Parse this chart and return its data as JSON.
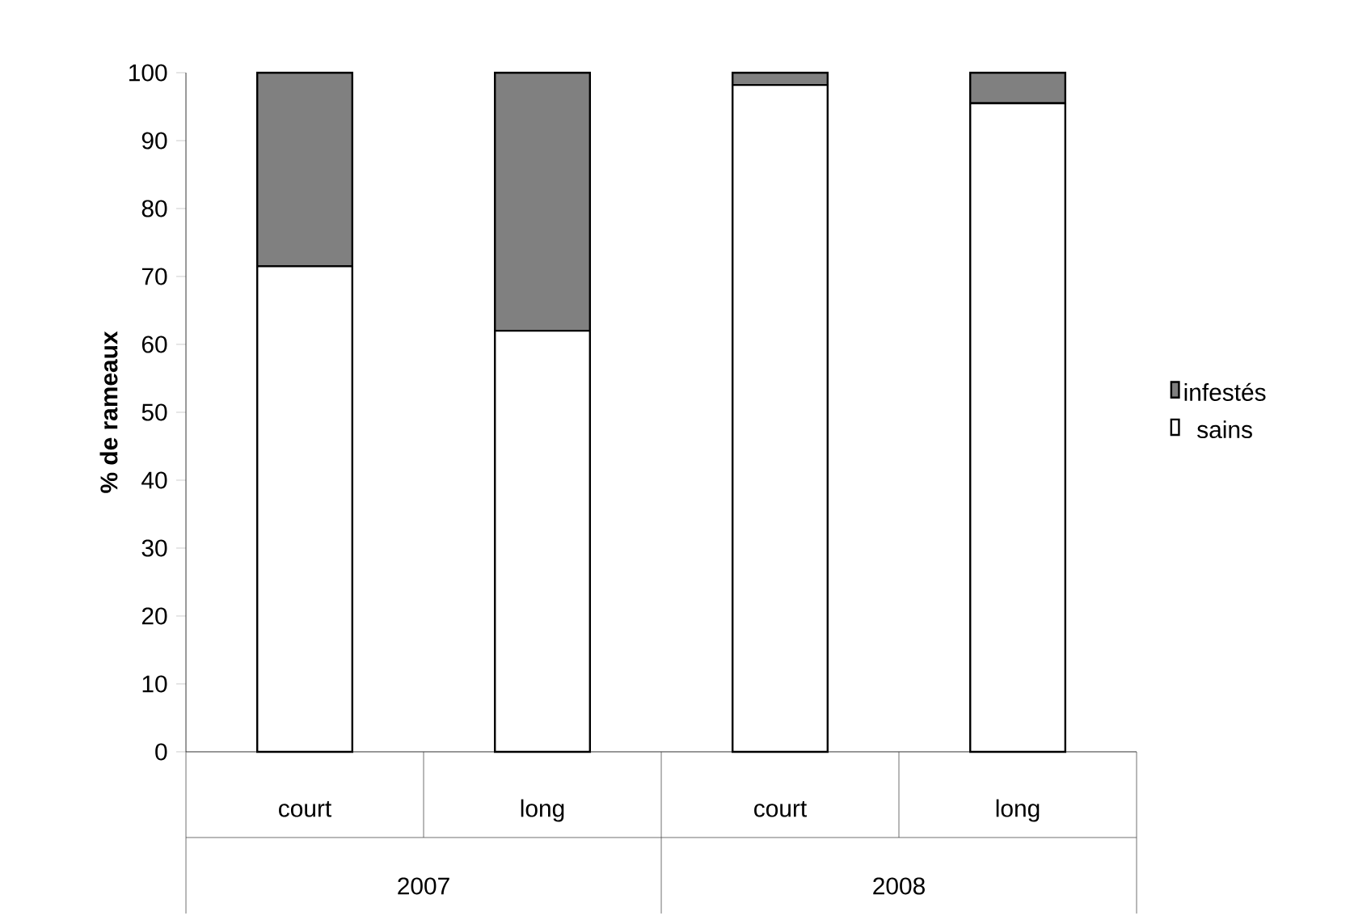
{
  "chart_data": {
    "type": "bar",
    "stacked": true,
    "ylabel": "% de rameaux",
    "categories": [
      "court",
      "long",
      "court",
      "long"
    ],
    "annotations": [
      "2007",
      "2008"
    ],
    "series": [
      {
        "name": "sains",
        "color": "#ffffff",
        "values": [
          71.5,
          62,
          98.2,
          95.5
        ]
      },
      {
        "name": "infestés",
        "color": "#808080",
        "values": [
          28.5,
          38,
          1.8,
          4.5
        ]
      }
    ],
    "ylim": [
      0,
      100
    ],
    "yticks": [
      0,
      10,
      20,
      30,
      40,
      50,
      60,
      70,
      80,
      90,
      100
    ],
    "legend": "right"
  }
}
